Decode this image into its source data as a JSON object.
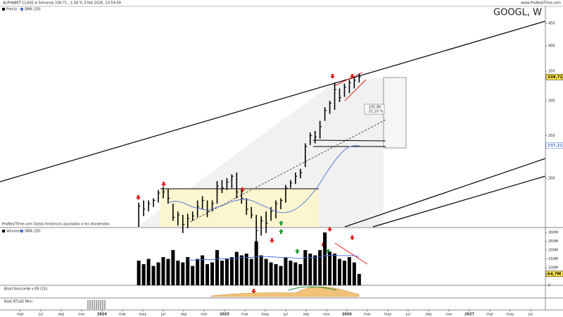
{
  "header": {
    "title": "ALPHABET CLASS A Semanal 339,71 , 1,58 % 3 feb 2026, 23:59:59",
    "site": "www.ProRealTime.com"
  },
  "chart_data": [
    {
      "type": "ohlc",
      "title": "GOOGL, W",
      "log_scale": true,
      "note": "ProRealTime.com Datos históricos ajustados a los dividendos",
      "annotations": [
        "-105,90",
        "-31,10 %"
      ],
      "xlim": [
        2023.167,
        2027.621
      ],
      "xticks": [
        {
          "value": 2023.333,
          "label": "mar"
        },
        {
          "value": 2023.5,
          "label": "jul"
        },
        {
          "value": 2023.667,
          "label": "sep"
        },
        {
          "value": 2023.833,
          "label": "nov"
        },
        {
          "value": 2024,
          "label": "2024"
        },
        {
          "value": 2024.167,
          "label": "mar"
        },
        {
          "value": 2024.333,
          "label": "may"
        },
        {
          "value": 2024.5,
          "label": "jul"
        },
        {
          "value": 2024.667,
          "label": "sep"
        },
        {
          "value": 2024.833,
          "label": "nov"
        },
        {
          "value": 2025,
          "label": "2025"
        },
        {
          "value": 2025.167,
          "label": "mar"
        },
        {
          "value": 2025.333,
          "label": "may"
        },
        {
          "value": 2025.5,
          "label": "jul"
        },
        {
          "value": 2025.667,
          "label": "sep"
        },
        {
          "value": 2025.833,
          "label": "nov"
        },
        {
          "value": 2026,
          "label": "2026"
        },
        {
          "value": 2026.167,
          "label": "mar"
        },
        {
          "value": 2026.333,
          "label": "may"
        },
        {
          "value": 2026.5,
          "label": "jul"
        },
        {
          "value": 2026.667,
          "label": "sep"
        },
        {
          "value": 2026.833,
          "label": "nov"
        },
        {
          "value": 2027,
          "label": "2027"
        },
        {
          "value": 2027.167,
          "label": "mar"
        },
        {
          "value": 2027.333,
          "label": "may"
        },
        {
          "value": 2027.5,
          "label": "jul"
        }
      ],
      "ylim": [
        155,
        490
      ],
      "yticks": [
        200,
        250,
        300,
        350,
        400,
        450
      ],
      "x": [
        2024.3,
        2024.34,
        2024.38,
        2024.42,
        2024.46,
        2024.5,
        2024.54,
        2024.58,
        2024.62,
        2024.66,
        2024.7,
        2024.74,
        2024.78,
        2024.82,
        2024.86,
        2024.9,
        2024.94,
        2024.98,
        2025.02,
        2025.06,
        2025.1,
        2025.14,
        2025.18,
        2025.22,
        2025.26,
        2025.3,
        2025.34,
        2025.38,
        2025.42,
        2025.46,
        2025.5,
        2025.54,
        2025.58,
        2025.62,
        2025.66,
        2025.7,
        2025.74,
        2025.78,
        2025.82,
        2025.86,
        2025.9,
        2025.94,
        2025.98,
        2026.02,
        2026.06,
        2026.1
      ],
      "series": [
        {
          "name": "Precio",
          "color": "#000000",
          "last_label": "339,71",
          "low": [
            155,
            164,
            168,
            172,
            176,
            180,
            175,
            160,
            156,
            150,
            154,
            160,
            163,
            170,
            163,
            168,
            175,
            185,
            188,
            190,
            180,
            175,
            165,
            162,
            140,
            148,
            150,
            160,
            162,
            170,
            176,
            190,
            194,
            200,
            212,
            238,
            240,
            246,
            270,
            280,
            286,
            298,
            306,
            312,
            320,
            330
          ],
          "high": [
            176,
            178,
            178,
            180,
            188,
            191,
            189,
            175,
            168,
            165,
            166,
            168,
            178,
            182,
            178,
            178,
            197,
            198,
            200,
            204,
            206,
            188,
            180,
            172,
            165,
            164,
            168,
            172,
            178,
            180,
            193,
            198,
            206,
            210,
            240,
            254,
            256,
            270,
            290,
            300,
            330,
            320,
            328,
            335,
            340,
            346
          ],
          "values": [
            173,
            170,
            175,
            178,
            185,
            186,
            180,
            163,
            165,
            157,
            162,
            164,
            172,
            178,
            168,
            175,
            192,
            190,
            196,
            202,
            186,
            180,
            170,
            165,
            152,
            160,
            158,
            168,
            175,
            178,
            190,
            195,
            202,
            206,
            236,
            250,
            248,
            262,
            285,
            296,
            318,
            305,
            322,
            330,
            334,
            339.71
          ]
        },
        {
          "name": "SMA (20)",
          "color": "#4a6fd8",
          "last_label": "237,21",
          "values": [
            null,
            null,
            null,
            null,
            null,
            null,
            176,
            177,
            177,
            176,
            174,
            172,
            171,
            170,
            169,
            170,
            172,
            173,
            175,
            177,
            178,
            179,
            179,
            178,
            176,
            174,
            172,
            170,
            168,
            167,
            167,
            168,
            170,
            173,
            177,
            182,
            188,
            195,
            203,
            211,
            219,
            226,
            232,
            236,
            237,
            237.21
          ]
        }
      ]
    },
    {
      "type": "bar",
      "ylim": [
        0,
        320
      ],
      "yticks": [
        {
          "value": 300,
          "label": "300M"
        },
        {
          "value": 250,
          "label": "250M"
        },
        {
          "value": 200,
          "label": "200M"
        },
        {
          "value": 150,
          "label": "150M"
        },
        {
          "value": 100,
          "label": "100M"
        },
        0
      ],
      "series": [
        {
          "name": "Volumen",
          "color": "#000000",
          "last_label": "64,7M",
          "values": [
            140,
            120,
            150,
            110,
            130,
            160,
            150,
            200,
            140,
            130,
            160,
            110,
            150,
            170,
            120,
            130,
            200,
            140,
            150,
            160,
            190,
            170,
            180,
            150,
            250,
            170,
            150,
            130,
            120,
            110,
            160,
            140,
            130,
            120,
            200,
            180,
            170,
            200,
            300,
            190,
            180,
            150,
            140,
            160,
            130,
            64.7
          ]
        },
        {
          "name": "SMA (20)",
          "color": "#4a6fd8",
          "values": [
            null,
            null,
            null,
            null,
            null,
            null,
            null,
            null,
            null,
            null,
            144,
            143,
            145,
            147,
            146,
            145,
            150,
            150,
            151,
            152,
            155,
            157,
            158,
            158,
            163,
            164,
            163,
            162,
            160,
            158,
            158,
            157,
            155,
            153,
            157,
            158,
            159,
            161,
            168,
            170,
            170,
            169,
            168,
            169,
            168,
            163
          ]
        }
      ]
    },
    {
      "type": "indicator",
      "title": "Blast Koncorde v.09 (15)"
    },
    {
      "type": "indicator",
      "title": "BlaS KTLAS Mini"
    }
  ]
}
